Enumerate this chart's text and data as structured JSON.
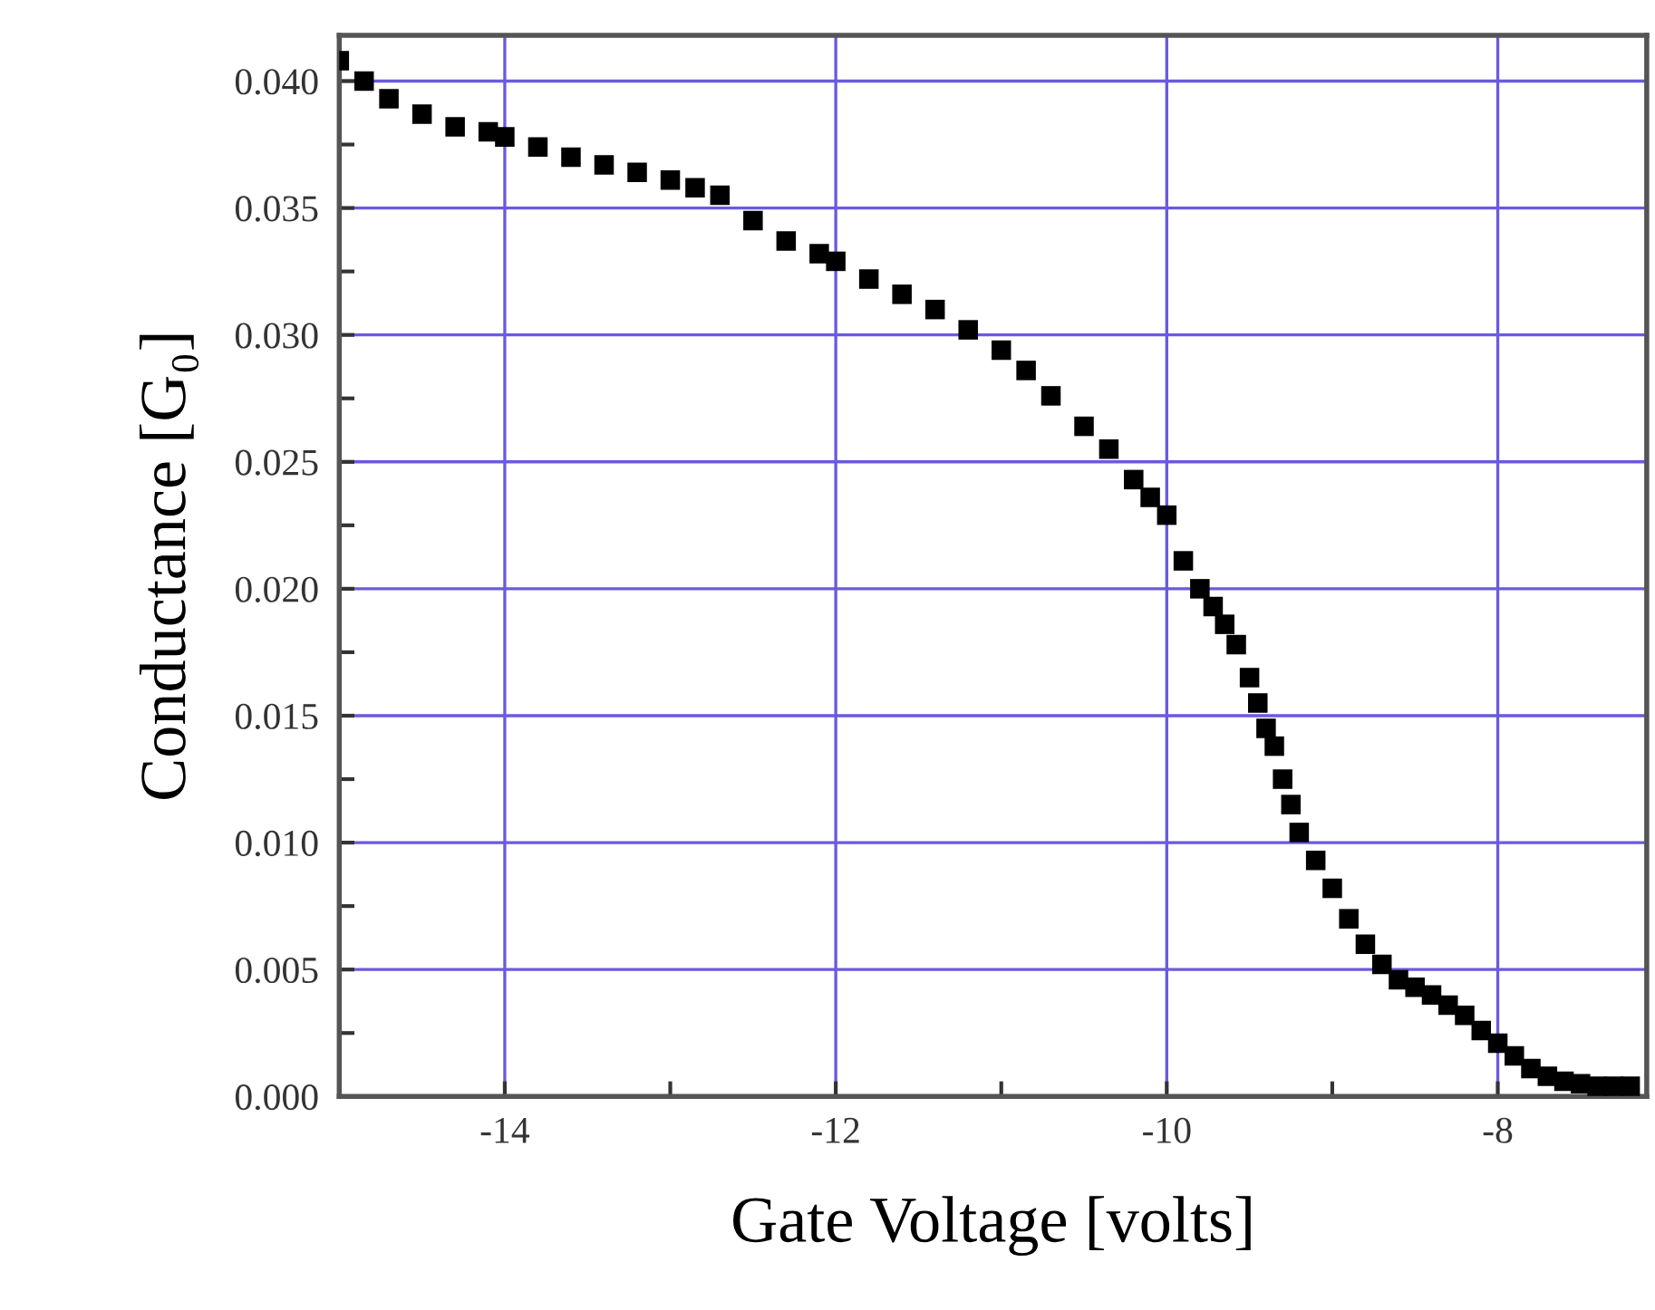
{
  "chart_data": {
    "type": "scatter",
    "xlabel": "Gate Voltage [volts]",
    "ylabel": "Conductance [G₀]",
    "x": [
      -15,
      -14.85,
      -14.7,
      -14.5,
      -14.3,
      -14.1,
      -14,
      -13.8,
      -13.6,
      -13.4,
      -13.2,
      -13,
      -12.85,
      -12.7,
      -12.5,
      -12.3,
      -12.1,
      -12,
      -11.8,
      -11.6,
      -11.4,
      -11.2,
      -11,
      -10.85,
      -10.7,
      -10.5,
      -10.35,
      -10.2,
      -10.1,
      -10,
      -9.9,
      -9.8,
      -9.72,
      -9.65,
      -9.58,
      -9.5,
      -9.45,
      -9.4,
      -9.35,
      -9.3,
      -9.25,
      -9.2,
      -9.1,
      -9.0,
      -8.9,
      -8.8,
      -8.7,
      -8.6,
      -8.5,
      -8.4,
      -8.3,
      -8.2,
      -8.1,
      -8.0,
      -7.9,
      -7.8,
      -7.7,
      -7.6,
      -7.5,
      -7.4,
      -7.3,
      -7.2
    ],
    "values": [
      0.0408,
      0.04,
      0.0393,
      0.0387,
      0.0382,
      0.038,
      0.0378,
      0.0374,
      0.037,
      0.0367,
      0.0364,
      0.0361,
      0.0358,
      0.0355,
      0.0345,
      0.0337,
      0.0332,
      0.0329,
      0.0322,
      0.0316,
      0.031,
      0.0302,
      0.0294,
      0.0286,
      0.0276,
      0.0264,
      0.0255,
      0.0243,
      0.0236,
      0.0229,
      0.0211,
      0.02,
      0.0193,
      0.0186,
      0.0178,
      0.0165,
      0.0155,
      0.0145,
      0.0138,
      0.0125,
      0.0115,
      0.0104,
      0.0093,
      0.0082,
      0.007,
      0.006,
      0.0052,
      0.0046,
      0.0043,
      0.004,
      0.0036,
      0.0032,
      0.0026,
      0.0021,
      0.0016,
      0.0011,
      0.0008,
      0.0006,
      0.0005,
      0.0004,
      0.0004,
      0.0004
    ],
    "color": "#000000",
    "marker": "square",
    "xlim": [
      -15,
      -7.1
    ],
    "ylim": [
      0,
      0.0418
    ],
    "xticks": [
      {
        "value": -14,
        "label": "-14"
      },
      {
        "value": -13,
        "label": null
      },
      {
        "value": -12,
        "label": "-12"
      },
      {
        "value": -11,
        "label": null
      },
      {
        "value": -10,
        "label": "-10"
      },
      {
        "value": -9,
        "label": null
      },
      {
        "value": -8,
        "label": "-8"
      }
    ],
    "yticks": [
      {
        "value": 0.0,
        "label": "0.000"
      },
      {
        "value": 0.0025,
        "label": null
      },
      {
        "value": 0.005,
        "label": "0.005"
      },
      {
        "value": 0.0075,
        "label": null
      },
      {
        "value": 0.01,
        "label": "0.010"
      },
      {
        "value": 0.0125,
        "label": null
      },
      {
        "value": 0.015,
        "label": "0.015"
      },
      {
        "value": 0.0175,
        "label": null
      },
      {
        "value": 0.02,
        "label": "0.020"
      },
      {
        "value": 0.0225,
        "label": null
      },
      {
        "value": 0.025,
        "label": "0.025"
      },
      {
        "value": 0.0275,
        "label": null
      },
      {
        "value": 0.03,
        "label": "0.030"
      },
      {
        "value": 0.0325,
        "label": null
      },
      {
        "value": 0.035,
        "label": "0.035"
      },
      {
        "value": 0.0375,
        "label": null
      },
      {
        "value": 0.04,
        "label": "0.040"
      }
    ],
    "grid": true
  }
}
